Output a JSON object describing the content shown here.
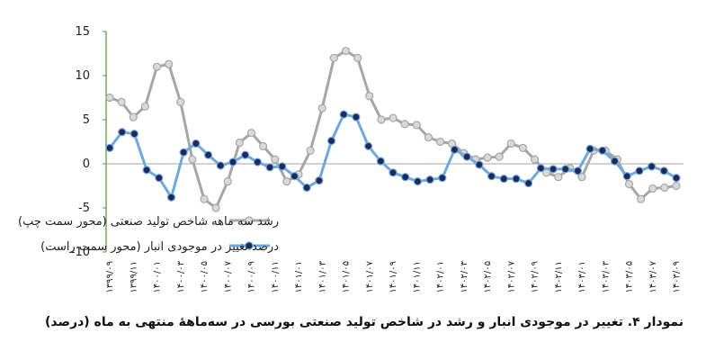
{
  "chart_data": {
    "type": "line",
    "title": "",
    "xlabel": "",
    "ylabel": "",
    "ylim": [
      -10,
      15
    ],
    "yticks": [
      15,
      10,
      5,
      0,
      -5,
      -10
    ],
    "ytick_labels": [
      "15",
      "10",
      "5",
      "0",
      "-5",
      "-10"
    ],
    "grid": false,
    "legend_placement": "bottom-center",
    "x_tick_labels": [
      "۱۳۹۹/۰۹",
      "۱۳۹۹/۱۱",
      "۱۴۰۰/۰۱",
      "۱۴۰۰/۰۳",
      "۱۴۰۰/۰۵",
      "۱۴۰۰/۰۷",
      "۱۴۰۰/۰۹",
      "۱۴۰۰/۱۱",
      "۱۴۰۱/۰۱",
      "۱۴۰۱/۰۳",
      "۱۴۰۱/۰۵",
      "۱۴۰۱/۰۷",
      "۱۴۰۱/۰۹",
      "۱۴۰۱/۱۱",
      "۱۴۰۲/۰۱",
      "۱۴۰۲/۰۳",
      "۱۴۰۲/۰۵",
      "۱۴۰۲/۰۷",
      "۱۴۰۲/۰۹",
      "۱۴۰۲/۱۱",
      "۱۴۰۳/۰۱",
      "۱۴۰۳/۰۳",
      "۱۴۰۳/۰۵",
      "۱۴۰۳/۰۷",
      "۱۴۰۳/۰۹"
    ],
    "series": [
      {
        "name": "رشد سه ماهه شاخص تولید صنعتی (محور سمت چپ)",
        "color": "#a6a6a6",
        "marker_fill": "#d9d9d9",
        "values": [
          7.5,
          7,
          5.3,
          6.5,
          11,
          11.3,
          7,
          0.5,
          -4,
          -5,
          -2,
          2.4,
          3.5,
          2,
          0.5,
          -2,
          -1.2,
          1.5,
          6.3,
          12,
          12.8,
          12,
          7.7,
          5,
          5.2,
          4.5,
          4.4,
          3,
          2.5,
          2.3,
          1.2,
          0.5,
          0.7,
          0.8,
          2.3,
          1.8,
          0.5,
          -1,
          -1.5,
          -0.5,
          -1.5,
          1.5,
          1.5,
          0.5,
          -2.3,
          -4,
          -2.8,
          -2.7,
          -2.5
        ]
      },
      {
        "name": "درصد تغییر در موجودی انبار (محور سمت راست)",
        "color": "#6fa8dc",
        "marker_fill": "#1f2a5c",
        "values": [
          1.8,
          3.6,
          3.4,
          -0.7,
          -1.6,
          -3.8,
          1.3,
          2.3,
          1,
          -0.2,
          0.2,
          1,
          0.2,
          -0.4,
          -0.3,
          -1.4,
          -2.7,
          -1.9,
          2.6,
          5.6,
          5.3,
          2,
          0.3,
          -1.0,
          -1.5,
          -2.0,
          -1.8,
          -1.6,
          1.6,
          0.8,
          -0.1,
          -1.4,
          -1.7,
          -1.7,
          -2.2,
          -0.5,
          -0.6,
          -0.6,
          -0.8,
          1.7,
          1.5,
          0.3,
          -1.4,
          -0.8,
          -0.3,
          -0.8,
          -1.6
        ]
      }
    ]
  },
  "caption": "نمودار ۴. تغییر در موجودی انبار و رشد در شاخص تولید صنعتی بورسی در سه‌ماههٔ منتهی به ماه (درصد)"
}
